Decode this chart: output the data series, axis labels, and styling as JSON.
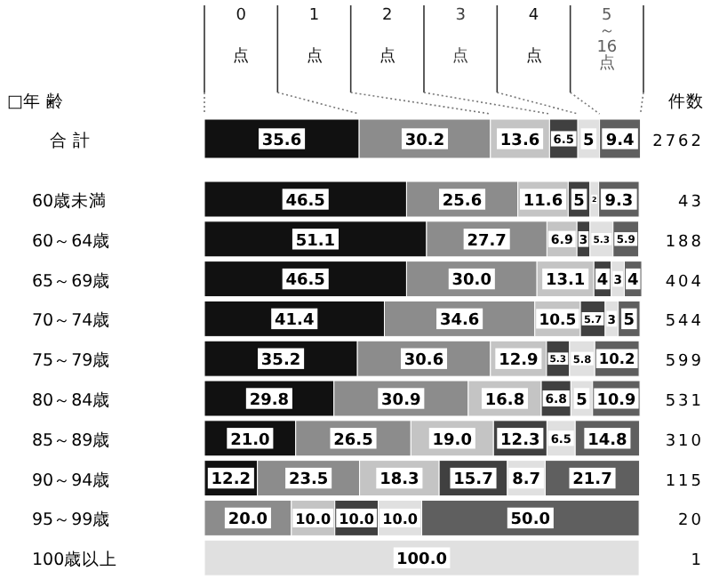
{
  "chart_data": {
    "type": "bar",
    "orientation": "horizontal",
    "stacked": true,
    "legend": "top",
    "ylabel": "□年 齢",
    "y2label": "件数",
    "xlim": [
      0,
      101
    ],
    "categories": [
      "合 計",
      "60歳未満",
      "60～64歳",
      "65～69歳",
      "70～74歳",
      "75～79歳",
      "80～84歳",
      "85～89歳",
      "90～94歳",
      "95～99歳",
      "100歳以上"
    ],
    "series": [
      {
        "name": "0点",
        "color": "#111111",
        "values": [
          35.6,
          46.5,
          51.1,
          46.5,
          41.4,
          35.2,
          29.8,
          21.0,
          12.2,
          null,
          null
        ],
        "value_labels": [
          "35.6",
          "46.5",
          "51.1",
          "46.5",
          "41.4",
          "35.2",
          "29.8",
          "21.0",
          "12.2",
          null,
          null
        ]
      },
      {
        "name": "1点",
        "color": "#8c8c8c",
        "values": [
          30.2,
          25.6,
          27.7,
          30.0,
          34.6,
          30.6,
          30.9,
          26.5,
          23.5,
          20.0,
          null
        ],
        "value_labels": [
          "30.2",
          "25.6",
          "27.7",
          "30.0",
          "34.6",
          "30.6",
          "30.9",
          "26.5",
          "23.5",
          "20.0",
          null
        ]
      },
      {
        "name": "2点",
        "color": "#c4c4c4",
        "values": [
          13.6,
          11.6,
          6.9,
          13.1,
          10.5,
          12.9,
          16.8,
          19.0,
          18.3,
          10.0,
          null
        ],
        "value_labels": [
          "13.6",
          "11.6",
          "6.9",
          "13.1",
          "10.5",
          "12.9",
          "16.8",
          "19.0",
          "18.3",
          "10.0",
          null
        ]
      },
      {
        "name": "3点",
        "color": "#404040",
        "values": [
          6.5,
          5,
          3,
          4,
          5.7,
          5.3,
          6.8,
          12.3,
          15.7,
          10.0,
          null
        ],
        "value_labels": [
          "6.5",
          "5",
          "3",
          "4",
          "5.7",
          "5.3",
          "6.8",
          "12.3",
          "15.7",
          "10.0",
          null
        ]
      },
      {
        "name": "4点",
        "color": "#e0e0e0",
        "values": [
          5,
          2,
          5.3,
          3,
          3,
          5.8,
          5,
          6.5,
          8.7,
          10.0,
          100.0
        ],
        "value_labels": [
          "5",
          "2",
          "5.3",
          "3",
          "3",
          "5.8",
          "5",
          "6.5",
          "8.7",
          "10.0",
          "100.0"
        ]
      },
      {
        "name": "5～16点",
        "color": "#5f5f5f",
        "values": [
          9.4,
          9.3,
          5.9,
          4,
          5,
          10.2,
          10.9,
          14.8,
          21.7,
          50.0,
          null
        ],
        "value_labels": [
          "9.4",
          "9.3",
          "5.9",
          "4",
          "5",
          "10.2",
          "10.9",
          "14.8",
          "21.7",
          "50.0",
          null
        ]
      }
    ],
    "annotations": [
      "2762",
      "43",
      "188",
      "404",
      "544",
      "599",
      "531",
      "310",
      "115",
      "20",
      "1"
    ]
  }
}
